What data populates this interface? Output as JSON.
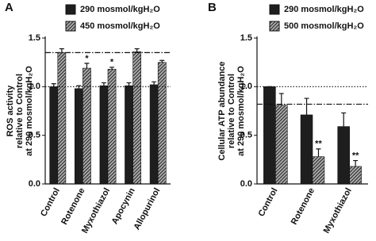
{
  "chart_data": [
    {
      "type": "bar",
      "panel": "A",
      "ylabel": [
        "ROS activity",
        "relative to Control",
        "at 290 mosmol/kgH₂O"
      ],
      "categories": [
        "Control",
        "Rotenone",
        "Myxothiazol",
        "Apocynin",
        "Allopurinol"
      ],
      "series": [
        {
          "name": "290 mosmol/kgH₂O",
          "color": "#1e1e1e",
          "hatch": false,
          "values": [
            1.0,
            0.98,
            1.01,
            1.01,
            1.02
          ],
          "errors": [
            0.03,
            0.03,
            0.03,
            0.03,
            0.03
          ],
          "significance": [
            null,
            null,
            null,
            null,
            null
          ]
        },
        {
          "name": "450 mosmol/kgH₂O",
          "color": "#3a3a3a",
          "hatch": true,
          "values": [
            1.35,
            1.19,
            1.18,
            1.36,
            1.25
          ],
          "errors": [
            0.04,
            0.05,
            0.02,
            0.03,
            0.02
          ],
          "significance": [
            null,
            "*",
            "*",
            null,
            null
          ]
        }
      ],
      "hlines": [
        {
          "value": 1.0,
          "style": "dotted"
        },
        {
          "value": 1.35,
          "style": "dashdot"
        }
      ],
      "ylim": [
        0,
        1.5
      ],
      "yticks": [
        {
          "value": 0,
          "label": "0.0"
        },
        0.5,
        {
          "value": 1,
          "label": "1.0"
        },
        1.5
      ]
    },
    {
      "type": "bar",
      "panel": "B",
      "ylabel": [
        "Cellular ATP abundance",
        "relative to Control",
        "at 290 mosmol/kgH₂O"
      ],
      "categories": [
        "Control",
        "Rotenone",
        "Myxothiazol"
      ],
      "series": [
        {
          "name": "290 mosmol/kgH₂O",
          "color": "#1e1e1e",
          "hatch": false,
          "values": [
            1.0,
            0.71,
            0.59
          ],
          "errors": [
            0,
            0.17,
            0.14
          ],
          "significance": [
            null,
            null,
            null
          ]
        },
        {
          "name": "500 mosmol/kgH₂O",
          "color": "#3a3a3a",
          "hatch": true,
          "values": [
            0.81,
            0.28,
            0.18
          ],
          "errors": [
            0.12,
            0.08,
            0.06
          ],
          "significance": [
            null,
            "**",
            "**"
          ]
        }
      ],
      "hlines": [
        {
          "value": 1.0,
          "style": "dotted"
        },
        {
          "value": 0.82,
          "style": "dashdot"
        }
      ],
      "ylim": [
        0,
        1.5
      ],
      "yticks": [
        {
          "value": 0,
          "label": "0.0"
        },
        0.5,
        {
          "value": 1,
          "label": "1.0"
        },
        1.5
      ]
    }
  ]
}
